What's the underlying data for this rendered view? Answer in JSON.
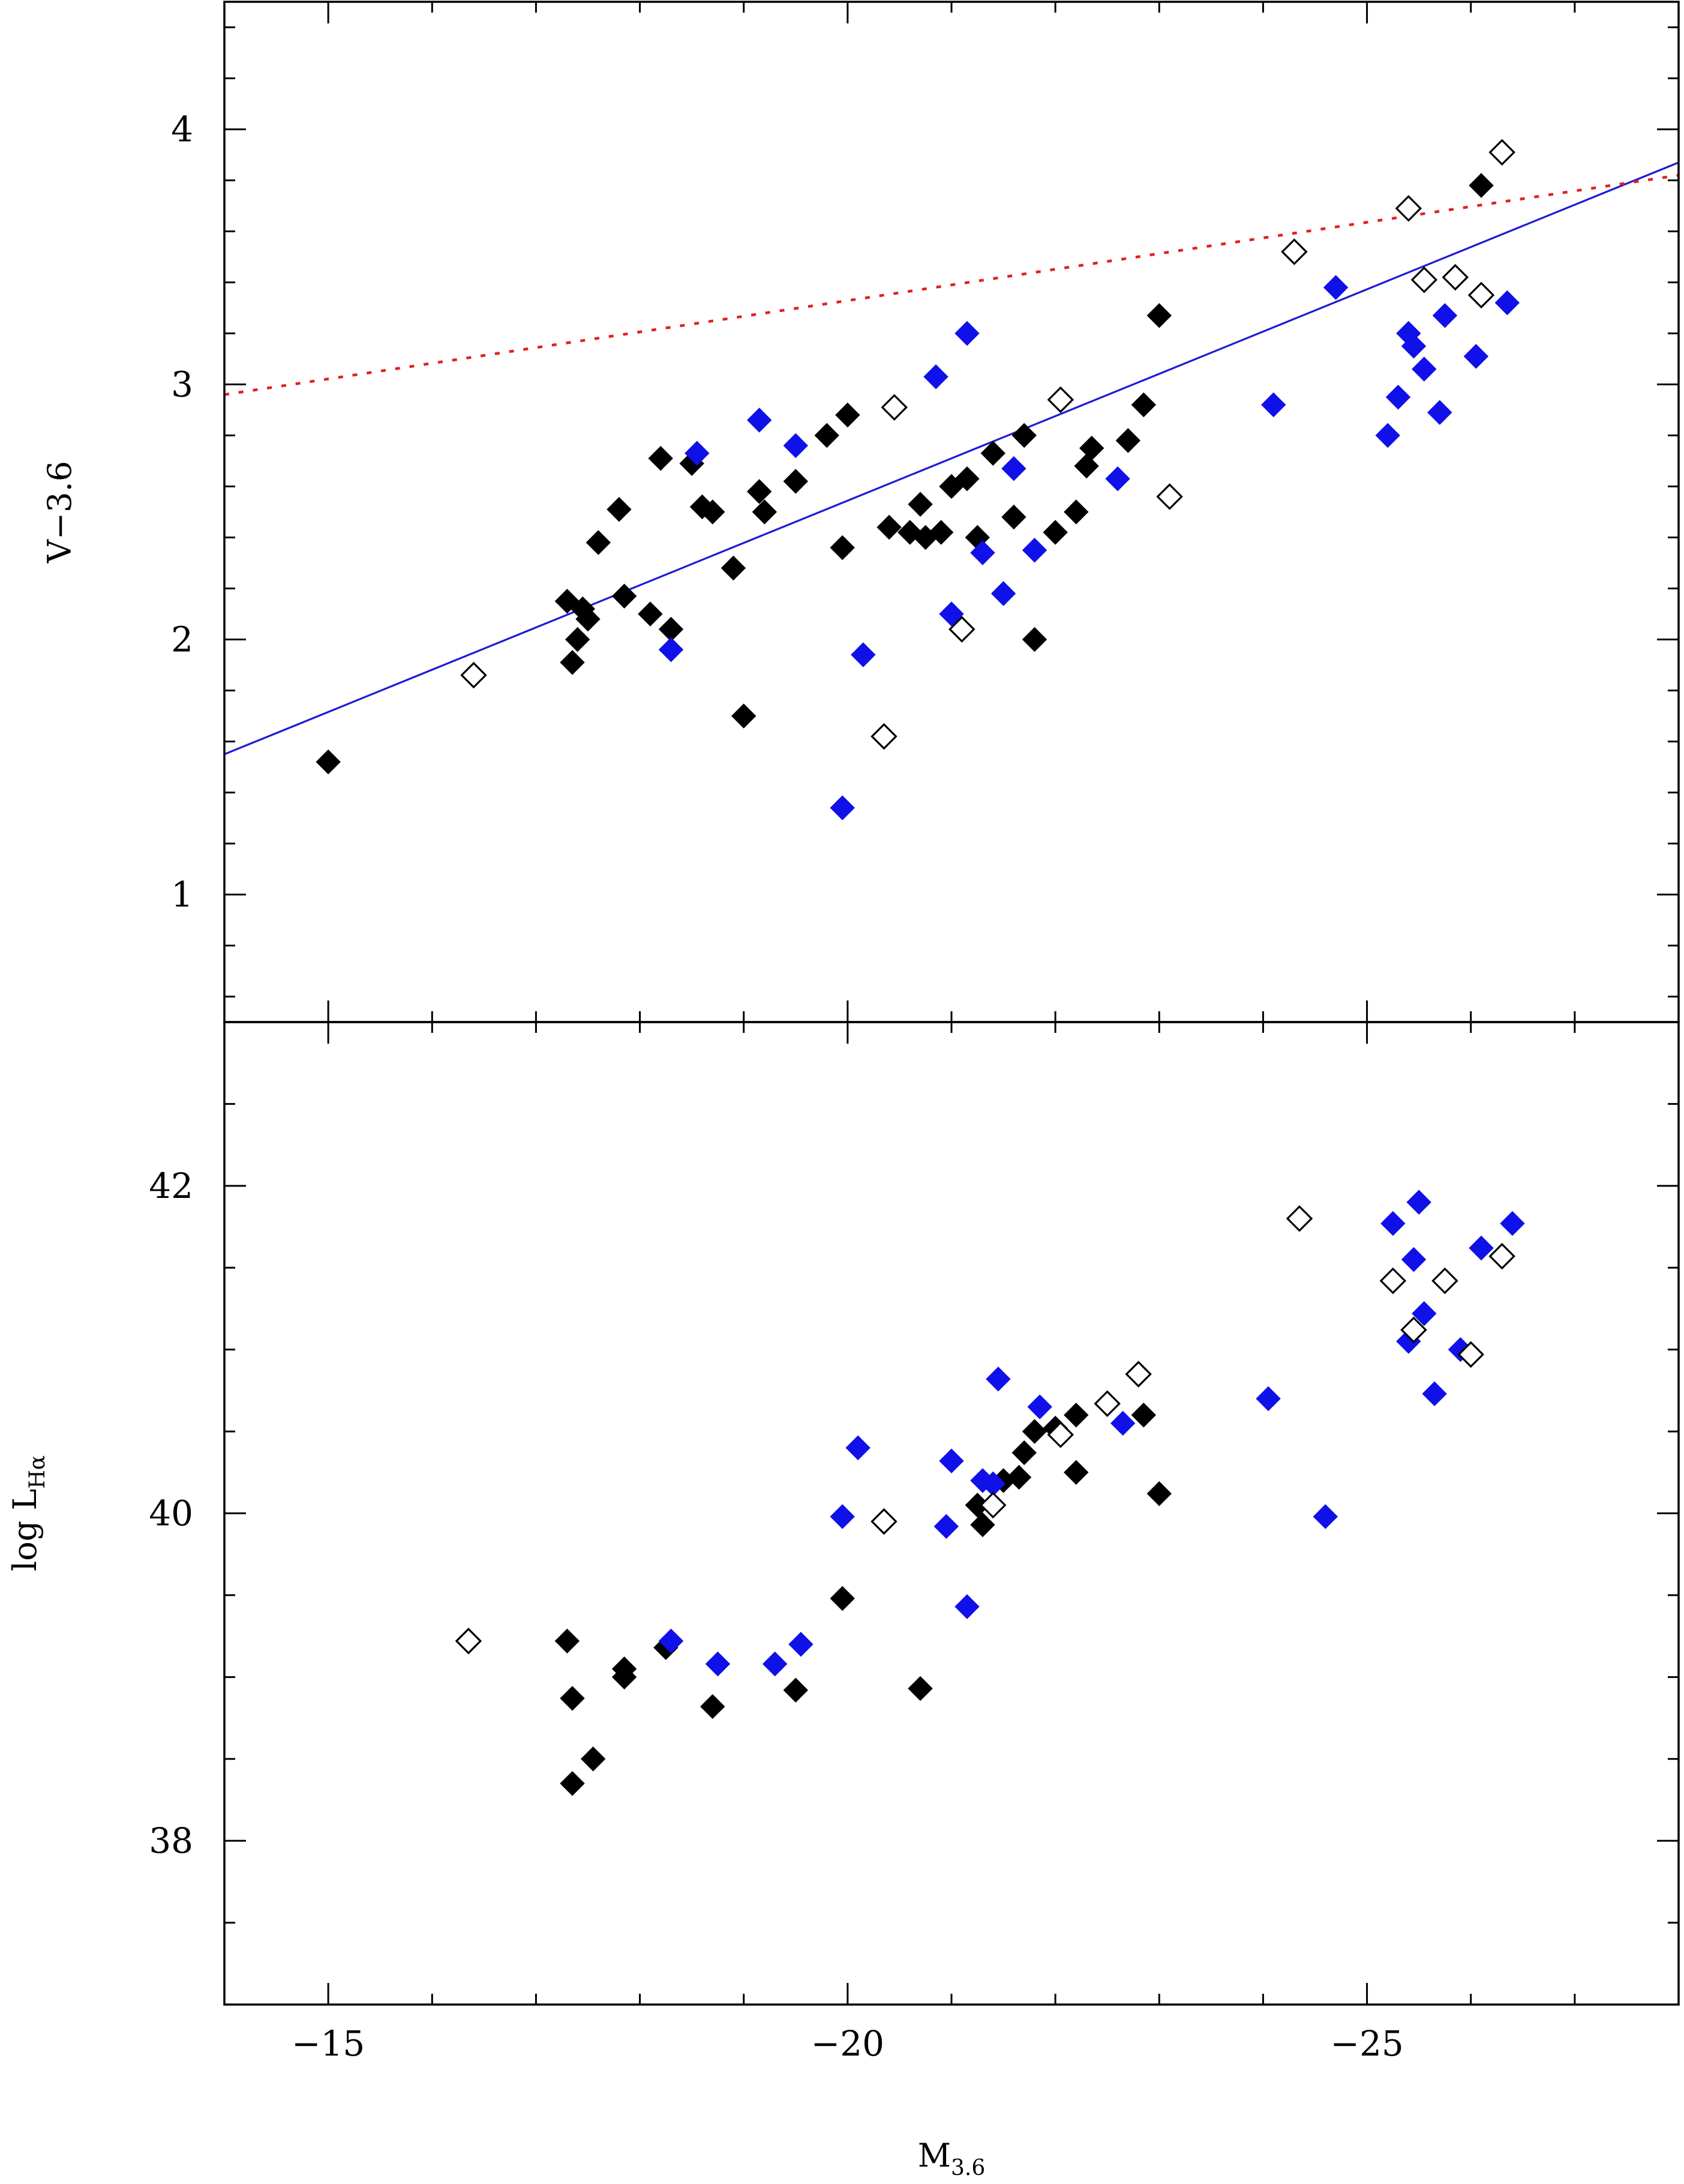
{
  "chart_data": [
    {
      "type": "scatter",
      "panel": "top",
      "xlabel": "",
      "ylabel": "V−3.6",
      "xlim": [
        -14,
        -28
      ],
      "ylim": [
        0.5,
        4.5
      ],
      "y_ticks": [
        1,
        2,
        3,
        4
      ],
      "y_tick_labels": [
        "1",
        "2",
        "3",
        "4"
      ],
      "y_minor_step": 0.2,
      "grid": false,
      "colors": {
        "black": "#000000",
        "blue": "#1010e8",
        "fit": "#1c1cd6",
        "dotted": "#e02020"
      },
      "lines": [
        {
          "style": "solid",
          "color": "blue",
          "x": [
            -14,
            -28
          ],
          "y": [
            1.55,
            3.87
          ]
        },
        {
          "style": "dotted",
          "color": "red",
          "x": [
            -14,
            -28
          ],
          "y": [
            2.96,
            3.82
          ]
        }
      ],
      "series": [
        {
          "marker": "filled-diamond",
          "color": "black",
          "points": [
            [
              -15.0,
              1.52
            ],
            [
              -17.3,
              2.15
            ],
            [
              -17.35,
              1.91
            ],
            [
              -17.4,
              2.0
            ],
            [
              -17.45,
              2.12
            ],
            [
              -17.5,
              2.08
            ],
            [
              -17.6,
              2.38
            ],
            [
              -17.8,
              2.51
            ],
            [
              -17.85,
              2.17
            ],
            [
              -18.1,
              2.1
            ],
            [
              -18.3,
              2.04
            ],
            [
              -18.2,
              2.71
            ],
            [
              -18.7,
              2.5
            ],
            [
              -18.5,
              2.69
            ],
            [
              -18.6,
              2.52
            ],
            [
              -18.9,
              2.28
            ],
            [
              -19.0,
              1.7
            ],
            [
              -19.15,
              2.58
            ],
            [
              -19.2,
              2.5
            ],
            [
              -19.5,
              2.62
            ],
            [
              -19.8,
              2.8
            ],
            [
              -20.0,
              2.88
            ],
            [
              -19.95,
              2.36
            ],
            [
              -20.4,
              2.44
            ],
            [
              -20.6,
              2.42
            ],
            [
              -20.75,
              2.4
            ],
            [
              -20.9,
              2.42
            ],
            [
              -20.7,
              2.53
            ],
            [
              -21.0,
              2.6
            ],
            [
              -21.15,
              2.63
            ],
            [
              -21.25,
              2.4
            ],
            [
              -21.4,
              2.73
            ],
            [
              -21.6,
              2.48
            ],
            [
              -21.7,
              2.8
            ],
            [
              -21.8,
              2.0
            ],
            [
              -22.0,
              2.42
            ],
            [
              -22.3,
              2.68
            ],
            [
              -22.2,
              2.5
            ],
            [
              -22.35,
              2.75
            ],
            [
              -22.7,
              2.78
            ],
            [
              -23.0,
              3.27
            ],
            [
              -22.85,
              2.92
            ],
            [
              -26.1,
              3.78
            ]
          ]
        },
        {
          "marker": "filled-diamond",
          "color": "blue",
          "points": [
            [
              -18.3,
              1.96
            ],
            [
              -18.55,
              2.73
            ],
            [
              -19.15,
              2.86
            ],
            [
              -19.5,
              2.76
            ],
            [
              -19.95,
              1.34
            ],
            [
              -20.15,
              1.94
            ],
            [
              -20.85,
              3.03
            ],
            [
              -21.0,
              2.1
            ],
            [
              -21.15,
              3.2
            ],
            [
              -21.3,
              2.34
            ],
            [
              -21.5,
              2.18
            ],
            [
              -21.6,
              2.67
            ],
            [
              -21.8,
              2.35
            ],
            [
              -22.6,
              2.63
            ],
            [
              -24.1,
              2.92
            ],
            [
              -24.7,
              3.38
            ],
            [
              -25.2,
              2.8
            ],
            [
              -25.3,
              2.95
            ],
            [
              -25.4,
              3.2
            ],
            [
              -25.45,
              3.15
            ],
            [
              -25.55,
              3.06
            ],
            [
              -25.7,
              2.89
            ],
            [
              -25.75,
              3.27
            ],
            [
              -26.05,
              3.11
            ],
            [
              -26.35,
              3.32
            ]
          ]
        },
        {
          "marker": "open-diamond",
          "color": "black",
          "points": [
            [
              -16.4,
              1.86
            ],
            [
              -20.35,
              1.62
            ],
            [
              -20.45,
              2.91
            ],
            [
              -21.1,
              2.04
            ],
            [
              -22.05,
              2.94
            ],
            [
              -23.1,
              2.56
            ],
            [
              -24.3,
              3.52
            ],
            [
              -25.4,
              3.69
            ],
            [
              -25.55,
              3.41
            ],
            [
              -25.85,
              3.42
            ],
            [
              -26.1,
              3.35
            ],
            [
              -26.3,
              3.91
            ]
          ]
        }
      ]
    },
    {
      "type": "scatter",
      "panel": "bottom",
      "xlabel": "M",
      "xlabel_sub": "3.6",
      "ylabel": "log L",
      "ylabel_sub": "Hα",
      "xlim": [
        -14,
        -28
      ],
      "ylim": [
        37,
        43
      ],
      "x_ticks": [
        -15,
        -20,
        -25
      ],
      "x_tick_labels": [
        "−15",
        "−20",
        "−25"
      ],
      "x_minor_step": 1,
      "y_ticks": [
        38,
        40,
        42
      ],
      "y_tick_labels": [
        "38",
        "40",
        "42"
      ],
      "y_minor_step": 0.5,
      "grid": false,
      "series": [
        {
          "marker": "filled-diamond",
          "color": "black",
          "points": [
            [
              -17.3,
              39.22
            ],
            [
              -17.35,
              38.87
            ],
            [
              -17.35,
              38.35
            ],
            [
              -17.55,
              38.5
            ],
            [
              -17.85,
              39.05
            ],
            [
              -17.85,
              39.0
            ],
            [
              -18.25,
              39.18
            ],
            [
              -18.7,
              38.82
            ],
            [
              -19.5,
              38.92
            ],
            [
              -19.95,
              39.48
            ],
            [
              -20.7,
              38.93
            ],
            [
              -21.25,
              40.05
            ],
            [
              -21.3,
              39.93
            ],
            [
              -21.5,
              40.2
            ],
            [
              -21.65,
              40.22
            ],
            [
              -21.7,
              40.37
            ],
            [
              -21.8,
              40.5
            ],
            [
              -22.0,
              40.52
            ],
            [
              -22.2,
              40.6
            ],
            [
              -22.2,
              40.25
            ],
            [
              -22.85,
              40.6
            ],
            [
              -23.0,
              40.12
            ]
          ]
        },
        {
          "marker": "filled-diamond",
          "color": "blue",
          "points": [
            [
              -18.3,
              39.22
            ],
            [
              -18.75,
              39.08
            ],
            [
              -19.3,
              39.08
            ],
            [
              -19.55,
              39.2
            ],
            [
              -19.95,
              39.98
            ],
            [
              -20.1,
              40.4
            ],
            [
              -20.95,
              39.92
            ],
            [
              -21.0,
              40.32
            ],
            [
              -21.15,
              39.43
            ],
            [
              -21.3,
              40.2
            ],
            [
              -21.4,
              40.18
            ],
            [
              -21.45,
              40.82
            ],
            [
              -21.85,
              40.65
            ],
            [
              -22.65,
              40.55
            ],
            [
              -24.05,
              40.7
            ],
            [
              -24.6,
              39.98
            ],
            [
              -25.25,
              41.77
            ],
            [
              -25.4,
              41.05
            ],
            [
              -25.45,
              41.55
            ],
            [
              -25.5,
              41.9
            ],
            [
              -25.55,
              41.22
            ],
            [
              -25.65,
              40.73
            ],
            [
              -25.9,
              41.0
            ],
            [
              -26.1,
              41.62
            ],
            [
              -26.4,
              41.77
            ]
          ]
        },
        {
          "marker": "open-diamond",
          "color": "black",
          "points": [
            [
              -16.35,
              39.22
            ],
            [
              -20.35,
              39.95
            ],
            [
              -21.4,
              40.05
            ],
            [
              -22.05,
              40.48
            ],
            [
              -22.5,
              40.67
            ],
            [
              -22.8,
              40.85
            ],
            [
              -24.35,
              41.8
            ],
            [
              -25.25,
              41.42
            ],
            [
              -25.45,
              41.12
            ],
            [
              -25.75,
              41.42
            ],
            [
              -26.0,
              40.97
            ],
            [
              -26.3,
              41.57
            ]
          ]
        }
      ]
    }
  ]
}
